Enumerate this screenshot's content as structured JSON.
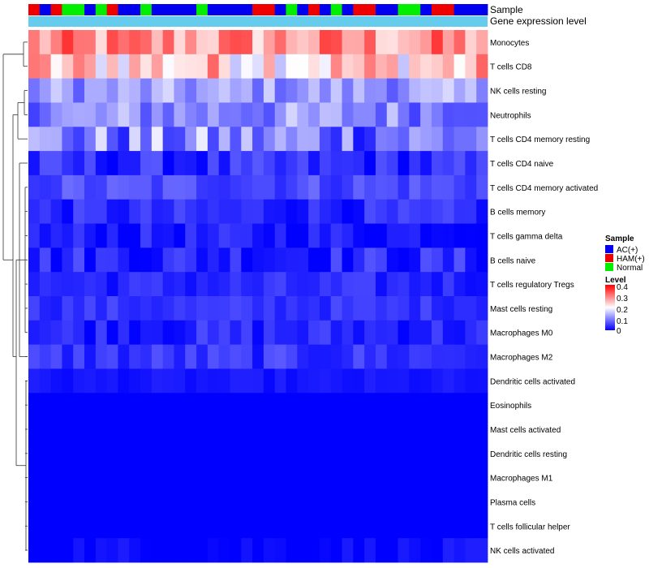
{
  "chart_data": {
    "type": "heatmap",
    "title": "",
    "annotation_tracks": [
      "Sample",
      "Gene expression level"
    ],
    "sample_groups": [
      "AC(+)",
      "HAM(+)",
      "Normal"
    ],
    "sample_colors": {
      "AC(+)": "#0000ee",
      "HAM(+)": "#ee0000",
      "Normal": "#00ee00"
    },
    "gene_expression_color": "#66ccee",
    "columns": [
      "HAM(+)",
      "AC(+)",
      "HAM(+)",
      "Normal",
      "Normal",
      "AC(+)",
      "Normal",
      "HAM(+)",
      "AC(+)",
      "AC(+)",
      "Normal",
      "AC(+)",
      "AC(+)",
      "AC(+)",
      "AC(+)",
      "Normal",
      "AC(+)",
      "AC(+)",
      "AC(+)",
      "AC(+)",
      "HAM(+)",
      "HAM(+)",
      "AC(+)",
      "Normal",
      "AC(+)",
      "HAM(+)",
      "AC(+)",
      "Normal",
      "AC(+)",
      "HAM(+)",
      "HAM(+)",
      "AC(+)",
      "AC(+)",
      "Normal",
      "Normal",
      "AC(+)",
      "HAM(+)",
      "HAM(+)",
      "AC(+)",
      "AC(+)",
      "AC(+)"
    ],
    "rows": [
      "Monocytes",
      "T cells CD8",
      "NK cells resting",
      "Neutrophils",
      "T cells CD4 memory resting",
      "T cells CD4 naive",
      "T cells CD4 memory activated",
      "B cells memory",
      "T cells gamma delta",
      "B cells naive",
      "T cells regulatory  Tregs",
      "Mast cells resting",
      "Macrophages M0",
      "Macrophages M2",
      "Dendritic cells activated",
      "Eosinophils",
      "Mast cells activated",
      "Dendritic cells resting",
      "Macrophages M1",
      "Plasma cells",
      "T cells follicular helper",
      "NK cells activated"
    ],
    "row_base_values": [
      0.28,
      0.24,
      0.12,
      0.11,
      0.1,
      0.03,
      0.06,
      0.03,
      0.02,
      0.03,
      0.03,
      0.04,
      0.03,
      0.04,
      0.015,
      0.0,
      0.0,
      0.0,
      0.0,
      0.0,
      0.0,
      0.005
    ],
    "row_spread": [
      0.08,
      0.09,
      0.05,
      0.06,
      0.09,
      0.04,
      0.03,
      0.03,
      0.03,
      0.04,
      0.025,
      0.02,
      0.03,
      0.03,
      0.01,
      0.0,
      0.0,
      0.0,
      0.0,
      0.0,
      0.0,
      0.02
    ],
    "legend": {
      "sample_title": "Sample",
      "sample_entries": [
        "AC(+)",
        "HAM(+)",
        "Normal"
      ],
      "level_title": "Level",
      "level_ticks": [
        "0.4",
        "0.3",
        "0.2",
        "0.1",
        "0"
      ],
      "level_range": [
        0,
        0.4
      ]
    },
    "colorscale": [
      "#0000ff",
      "#ffffff",
      "#ff0000"
    ]
  }
}
